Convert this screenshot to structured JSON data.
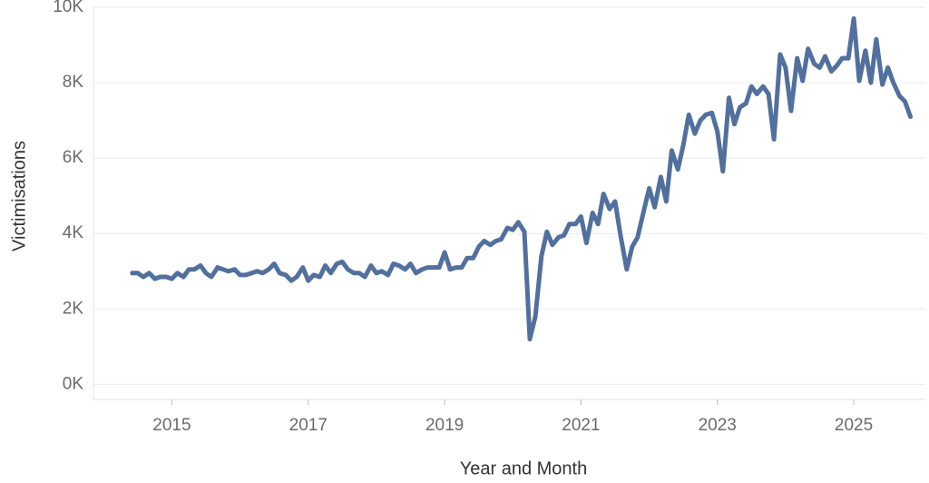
{
  "chart_data": {
    "type": "line",
    "x_label": "Year and Month",
    "y_label": "Victimisations",
    "xlim": [
      2013.85,
      2026.05
    ],
    "xticks": [
      2015,
      2017,
      2019,
      2021,
      2023,
      2025
    ],
    "ylim": [
      -400,
      10000
    ],
    "yticks": [
      {
        "value": 0,
        "label": "0K"
      },
      {
        "value": 2000,
        "label": "2K"
      },
      {
        "value": 4000,
        "label": "4K"
      },
      {
        "value": 6000,
        "label": "6K"
      },
      {
        "value": 8000,
        "label": "8K"
      },
      {
        "value": 10000,
        "label": "10K"
      }
    ],
    "grid": true,
    "x": [
      2014.42,
      2014.5,
      2014.58,
      2014.67,
      2014.75,
      2014.83,
      2014.92,
      2015,
      2015.08,
      2015.17,
      2015.25,
      2015.33,
      2015.42,
      2015.5,
      2015.58,
      2015.67,
      2015.75,
      2015.83,
      2015.92,
      2016,
      2016.08,
      2016.17,
      2016.25,
      2016.33,
      2016.42,
      2016.5,
      2016.58,
      2016.67,
      2016.75,
      2016.83,
      2016.92,
      2017,
      2017.08,
      2017.17,
      2017.25,
      2017.33,
      2017.42,
      2017.5,
      2017.58,
      2017.67,
      2017.75,
      2017.83,
      2017.92,
      2018,
      2018.08,
      2018.17,
      2018.25,
      2018.33,
      2018.42,
      2018.5,
      2018.58,
      2018.67,
      2018.75,
      2018.83,
      2018.92,
      2019,
      2019.08,
      2019.17,
      2019.25,
      2019.33,
      2019.42,
      2019.5,
      2019.58,
      2019.67,
      2019.75,
      2019.83,
      2019.92,
      2020,
      2020.08,
      2020.17,
      2020.25,
      2020.33,
      2020.42,
      2020.5,
      2020.58,
      2020.67,
      2020.75,
      2020.83,
      2020.92,
      2021,
      2021.08,
      2021.17,
      2021.25,
      2021.33,
      2021.42,
      2021.5,
      2021.58,
      2021.67,
      2021.75,
      2021.83,
      2021.92,
      2022,
      2022.08,
      2022.17,
      2022.25,
      2022.33,
      2022.42,
      2022.5,
      2022.58,
      2022.67,
      2022.75,
      2022.83,
      2022.92,
      2023,
      2023.08,
      2023.17,
      2023.25,
      2023.33,
      2023.42,
      2023.5,
      2023.58,
      2023.67,
      2023.75,
      2023.83,
      2023.92,
      2024,
      2024.08,
      2024.17,
      2024.25,
      2024.33,
      2024.42,
      2024.5,
      2024.58,
      2024.67,
      2024.75,
      2024.83,
      2024.92,
      2025,
      2025.08,
      2025.17,
      2025.25,
      2025.33,
      2025.42,
      2025.5,
      2025.58,
      2025.67,
      2025.75,
      2025.83
    ],
    "series": [
      {
        "color": "#52709e",
        "values": [
          2950,
          2950,
          2850,
          2950,
          2800,
          2850,
          2850,
          2800,
          2950,
          2850,
          3050,
          3050,
          3150,
          2950,
          2850,
          3100,
          3050,
          3000,
          3050,
          2900,
          2900,
          2950,
          3000,
          2950,
          3050,
          3200,
          2950,
          2900,
          2750,
          2850,
          3100,
          2750,
          2900,
          2850,
          3150,
          2950,
          3200,
          3250,
          3050,
          2950,
          2950,
          2850,
          3150,
          2950,
          3000,
          2900,
          3200,
          3150,
          3050,
          3200,
          2950,
          3050,
          3100,
          3100,
          3100,
          3500,
          3050,
          3100,
          3100,
          3350,
          3350,
          3650,
          3800,
          3700,
          3800,
          3850,
          4150,
          4100,
          4300,
          4050,
          1200,
          1800,
          3400,
          4050,
          3700,
          3900,
          3950,
          4250,
          4250,
          4450,
          3750,
          4550,
          4250,
          5050,
          4650,
          4850,
          3950,
          3050,
          3650,
          3900,
          4600,
          5200,
          4700,
          5500,
          4850,
          6200,
          5700,
          6350,
          7150,
          6650,
          7000,
          7150,
          7200,
          6700,
          5650,
          7600,
          6900,
          7350,
          7450,
          7900,
          7700,
          7900,
          7700,
          6500,
          8750,
          8400,
          7250,
          8650,
          8050,
          8900,
          8500,
          8400,
          8700,
          8300,
          8450,
          8650,
          8650,
          9700,
          8050,
          8850,
          8000,
          9150,
          7950,
          8400,
          8000,
          7650,
          7500,
          7100
        ]
      }
    ]
  }
}
